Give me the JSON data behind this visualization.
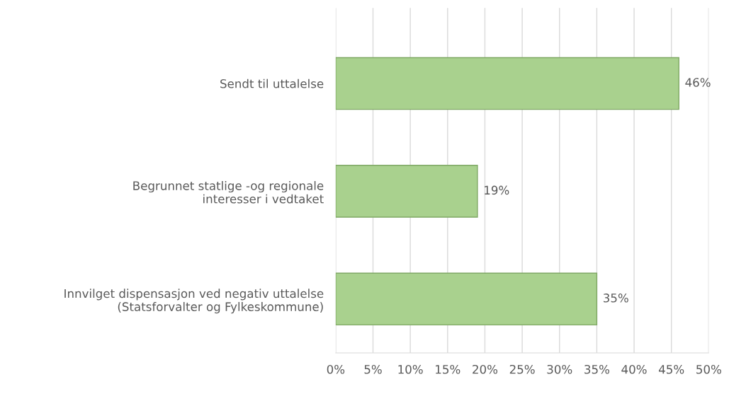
{
  "chart_data": {
    "type": "bar",
    "orientation": "horizontal",
    "categories": [
      "Sendt til uttalelse",
      "Begrunnet statlige -og regionale\ninteresser i vedtaket",
      "Innvilget dispensasjon ved negativ uttalelse\n(Statsforvalter og Fylkeskommune)"
    ],
    "values": [
      46,
      19,
      35
    ],
    "value_labels": [
      "46%",
      "19%",
      "35%"
    ],
    "color": "#a9d18e",
    "xlim": [
      0,
      50
    ],
    "xticks": [
      {
        "value": 0,
        "label": "0%"
      },
      {
        "value": 5,
        "label": "5%"
      },
      {
        "value": 10,
        "label": "10%"
      },
      {
        "value": 15,
        "label": "15%"
      },
      {
        "value": 20,
        "label": "20%"
      },
      {
        "value": 25,
        "label": "25%"
      },
      {
        "value": 30,
        "label": "30%"
      },
      {
        "value": 35,
        "label": "35%"
      },
      {
        "value": 40,
        "label": "40%"
      },
      {
        "value": 45,
        "label": "45%"
      },
      {
        "value": 50,
        "label": "50%"
      }
    ],
    "grid": "x",
    "legend": false
  }
}
